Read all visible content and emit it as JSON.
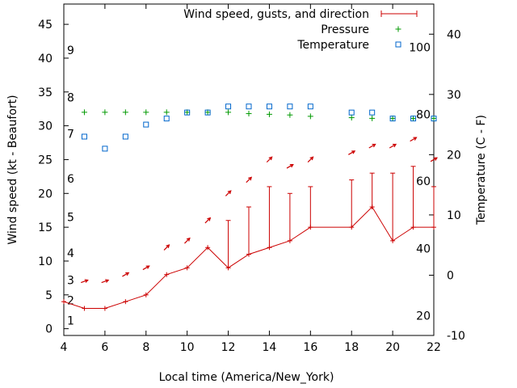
{
  "chart_data": {
    "type": "line",
    "xlabel": "Local time (America/New_York)",
    "ylabel": "Wind speed (kt - Beaufort)",
    "y2label": "Temperature (C - F)",
    "xlim": [
      4,
      22
    ],
    "ylim": [
      -1,
      48
    ],
    "y2lim": [
      -10,
      45
    ],
    "grid": false,
    "legend_position": "top-right",
    "x_ticks": [
      "4",
      "6",
      "8",
      "10",
      "12",
      "14",
      "16",
      "18",
      "20",
      "22"
    ],
    "y_ticks": [
      "0",
      "5",
      "10",
      "15",
      "20",
      "25",
      "30",
      "35",
      "40",
      "45"
    ],
    "y2_ticks": [
      "-10",
      "0",
      "10",
      "20",
      "30",
      "40"
    ],
    "beaufort_labels": [
      {
        "label": "1",
        "y": 1.2
      },
      {
        "label": "2",
        "y": 4.2
      },
      {
        "label": "3",
        "y": 7.2
      },
      {
        "label": "4",
        "y": 11.2
      },
      {
        "label": "5",
        "y": 16.5
      },
      {
        "label": "6",
        "y": 22.2
      },
      {
        "label": "7",
        "y": 28.8
      },
      {
        "label": "8",
        "y": 34.2
      },
      {
        "label": "9",
        "y": 41.2
      }
    ],
    "fahrenheit_labels": [
      {
        "label": "20",
        "y2": -6.7
      },
      {
        "label": "40",
        "y2": 4.4
      },
      {
        "label": "60",
        "y2": 15.6
      },
      {
        "label": "80",
        "y2": 26.7
      },
      {
        "label": "100",
        "y2": 37.8
      }
    ],
    "series": [
      {
        "name": "Wind speed, gusts, and direction",
        "color": "#cc0000",
        "x": [
          4,
          5,
          6,
          7,
          8,
          9,
          10,
          11,
          12,
          13,
          14,
          15,
          16,
          18,
          19,
          20,
          21,
          22
        ],
        "y": [
          4,
          3,
          3,
          4,
          5,
          8,
          9,
          12,
          9,
          11,
          12,
          13,
          15,
          15,
          18,
          13,
          15,
          15
        ],
        "gusts": [
          null,
          null,
          null,
          null,
          null,
          null,
          null,
          null,
          16,
          18,
          21,
          20,
          21,
          22,
          23,
          23,
          24,
          21
        ],
        "direction_arrows": {
          "x": [
            5,
            6,
            7,
            8,
            9,
            10,
            11,
            12,
            13,
            14,
            15,
            16,
            18,
            19,
            20,
            21,
            22
          ],
          "y": [
            7,
            7,
            8,
            9,
            12,
            13,
            16,
            20,
            22,
            25,
            24,
            25,
            26,
            27,
            27,
            28,
            25
          ],
          "angle": [
            20,
            20,
            30,
            30,
            45,
            45,
            45,
            45,
            45,
            45,
            30,
            45,
            30,
            30,
            30,
            30,
            30
          ]
        }
      },
      {
        "name": "Pressure",
        "color": "#009900",
        "x": [
          5,
          6,
          7,
          8,
          9,
          10,
          11,
          12,
          13,
          14,
          15,
          16,
          18,
          19,
          20,
          21,
          22
        ],
        "y": [
          32,
          32,
          32,
          32,
          32,
          32,
          32,
          32,
          31.8,
          31.7,
          31.6,
          31.4,
          31.2,
          31.1,
          31.1,
          31.1,
          31.1
        ]
      },
      {
        "name": "Temperature",
        "color": "#0066cc",
        "axis": "y2",
        "x": [
          5,
          6,
          7,
          8,
          9,
          10,
          11,
          12,
          13,
          14,
          15,
          16,
          18,
          19,
          20,
          21,
          22
        ],
        "y": [
          23,
          21,
          23,
          25,
          26,
          27,
          27,
          28,
          28,
          28,
          28,
          28,
          27,
          27,
          26,
          26,
          26
        ]
      }
    ]
  }
}
